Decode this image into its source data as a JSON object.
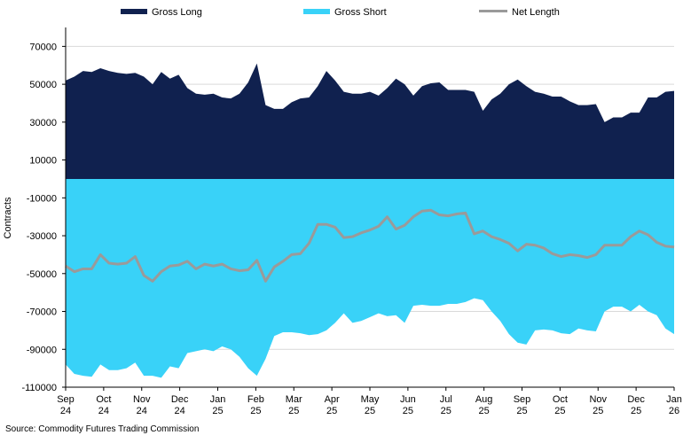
{
  "source_text": "Source: Commodity Futures Trading Commission",
  "colors": {
    "gross_long": "#10214f",
    "gross_short": "#39d2f8",
    "net_length": "#9a9a9a",
    "grid": "#d9d9d9",
    "axis": "#000000"
  },
  "chart_data": {
    "type": "area",
    "ylabel": "Contracts",
    "ylim": [
      -110000,
      80000
    ],
    "y_ticks": [
      70000,
      50000,
      30000,
      10000,
      -10000,
      -30000,
      -50000,
      -70000,
      -90000,
      -110000
    ],
    "y_tick_labels": [
      "70000",
      "50000",
      "30000",
      "10000",
      "-10000",
      "-30000",
      "-50000",
      "-70000",
      "-90000",
      "-110000"
    ],
    "grid": "horizontal",
    "legend_position": "top",
    "x_tick_labels": [
      [
        "Sep",
        "24"
      ],
      [
        "Oct",
        "24"
      ],
      [
        "Nov",
        "24"
      ],
      [
        "Dec",
        "24"
      ],
      [
        "Jan",
        "25"
      ],
      [
        "Feb",
        "25"
      ],
      [
        "Mar",
        "25"
      ],
      [
        "Apr",
        "25"
      ],
      [
        "May",
        "25"
      ],
      [
        "Jun",
        "25"
      ],
      [
        "Jul",
        "25"
      ],
      [
        "Aug",
        "25"
      ],
      [
        "Sep",
        "25"
      ],
      [
        "Oct",
        "25"
      ],
      [
        "Nov",
        "25"
      ],
      [
        "Dec",
        "25"
      ],
      [
        "Jan",
        "26"
      ]
    ],
    "series": [
      {
        "name": "Gross Long",
        "style": "area",
        "values": [
          52000,
          54000,
          57000,
          56500,
          58500,
          57000,
          56000,
          55500,
          56000,
          54000,
          50000,
          56500,
          53000,
          55000,
          48000,
          45000,
          44500,
          45000,
          43000,
          42500,
          45000,
          51000,
          61000,
          39000,
          37000,
          37000,
          40500,
          42500,
          43000,
          49000,
          57000,
          52000,
          46000,
          45000,
          45000,
          46000,
          44000,
          48000,
          53000,
          50000,
          44000,
          49000,
          50500,
          51000,
          47000,
          47000,
          47000,
          46000,
          36000,
          42000,
          45000,
          50000,
          52500,
          49000,
          46000,
          45000,
          43500,
          43500,
          41000,
          39000,
          39000,
          39500,
          30000,
          32500,
          32500,
          35000,
          35000,
          43000,
          43000,
          46000,
          46500
        ]
      },
      {
        "name": "Gross Short",
        "style": "area",
        "values": [
          -98000,
          -103000,
          -104000,
          -104500,
          -98000,
          -101000,
          -101000,
          -100000,
          -97000,
          -104000,
          -104000,
          -105000,
          -99000,
          -100000,
          -92000,
          -91000,
          -90000,
          -91000,
          -88500,
          -90000,
          -94000,
          -100000,
          -104000,
          -95000,
          -83000,
          -81000,
          -81000,
          -81500,
          -82500,
          -82000,
          -80000,
          -76000,
          -71000,
          -76000,
          -75000,
          -73000,
          -71000,
          -72500,
          -72000,
          -76000,
          -67000,
          -66500,
          -67000,
          -67000,
          -66000,
          -66000,
          -65000,
          -63000,
          -64000,
          -70000,
          -75000,
          -82000,
          -86500,
          -87500,
          -80000,
          -79500,
          -80000,
          -81500,
          -82000,
          -79000,
          -80000,
          -80500,
          -70000,
          -67500,
          -67500,
          -70000,
          -66500,
          -70000,
          -72000,
          -79000,
          -82000
        ]
      },
      {
        "name": "Net Length",
        "style": "line",
        "values": [
          -46000,
          -49000,
          -47500,
          -47500,
          -40000,
          -44500,
          -45000,
          -44500,
          -41000,
          -51000,
          -54000,
          -49000,
          -46000,
          -45500,
          -43500,
          -47500,
          -45000,
          -46000,
          -45000,
          -47500,
          -48500,
          -48000,
          -43000,
          -54000,
          -46500,
          -43500,
          -40000,
          -39500,
          -34000,
          -24000,
          -24000,
          -25500,
          -31000,
          -30500,
          -28500,
          -27000,
          -25000,
          -20000,
          -26500,
          -24500,
          -20000,
          -17000,
          -16500,
          -19000,
          -19500,
          -18500,
          -18000,
          -29000,
          -27500,
          -30500,
          -32000,
          -34000,
          -38000,
          -34500,
          -35000,
          -36500,
          -39500,
          -41000,
          -40000,
          -40500,
          -41500,
          -40000,
          -35000,
          -35000,
          -35000,
          -30500,
          -27500,
          -29500,
          -33500,
          -35500,
          -36000
        ]
      }
    ]
  }
}
